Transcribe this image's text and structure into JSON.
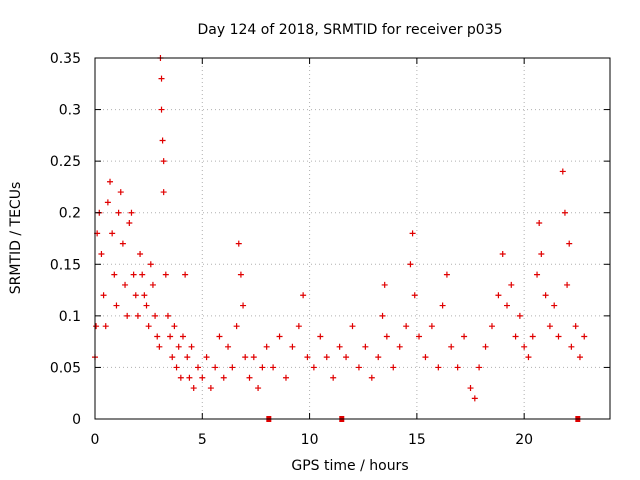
{
  "chart_data": {
    "type": "scatter",
    "title": "Day 124 of 2018, SRMTID for receiver p035",
    "xlabel": "GPS time / hours",
    "ylabel": "SRMTID / TECUs",
    "xlim": [
      0,
      24
    ],
    "ylim": [
      0,
      0.35
    ],
    "x_ticks": [
      0,
      5,
      10,
      15,
      20
    ],
    "x_tick_labels": [
      "0",
      "5",
      "10",
      "15",
      "20"
    ],
    "y_ticks": [
      0,
      0.05,
      0.1,
      0.15,
      0.2,
      0.25,
      0.3,
      0.35
    ],
    "y_tick_labels": [
      "0",
      "0.05",
      "0.1",
      "0.15",
      "0.2",
      "0.25",
      "0.3",
      "0.35"
    ],
    "grid": true,
    "marker": "plus",
    "series_color": "#e00000",
    "gap_markers_x": [
      8.1,
      11.5,
      22.5
    ],
    "series": [
      {
        "name": "SRMTID",
        "points": [
          [
            0.0,
            0.06
          ],
          [
            0.05,
            0.09
          ],
          [
            0.1,
            0.18
          ],
          [
            0.2,
            0.2
          ],
          [
            0.3,
            0.16
          ],
          [
            0.4,
            0.12
          ],
          [
            0.5,
            0.09
          ],
          [
            0.6,
            0.21
          ],
          [
            0.7,
            0.23
          ],
          [
            0.8,
            0.18
          ],
          [
            0.9,
            0.14
          ],
          [
            1.0,
            0.11
          ],
          [
            1.1,
            0.2
          ],
          [
            1.2,
            0.22
          ],
          [
            1.3,
            0.17
          ],
          [
            1.4,
            0.13
          ],
          [
            1.5,
            0.1
          ],
          [
            1.6,
            0.19
          ],
          [
            1.7,
            0.2
          ],
          [
            1.8,
            0.14
          ],
          [
            1.9,
            0.12
          ],
          [
            2.0,
            0.1
          ],
          [
            2.1,
            0.16
          ],
          [
            2.2,
            0.14
          ],
          [
            2.3,
            0.12
          ],
          [
            2.4,
            0.11
          ],
          [
            2.5,
            0.09
          ],
          [
            2.6,
            0.15
          ],
          [
            2.7,
            0.13
          ],
          [
            2.8,
            0.1
          ],
          [
            2.9,
            0.08
          ],
          [
            3.0,
            0.07
          ],
          [
            3.05,
            0.35
          ],
          [
            3.1,
            0.33
          ],
          [
            3.1,
            0.3
          ],
          [
            3.15,
            0.27
          ],
          [
            3.2,
            0.25
          ],
          [
            3.2,
            0.22
          ],
          [
            3.3,
            0.14
          ],
          [
            3.4,
            0.1
          ],
          [
            3.5,
            0.08
          ],
          [
            3.6,
            0.06
          ],
          [
            3.7,
            0.09
          ],
          [
            3.8,
            0.05
          ],
          [
            3.9,
            0.07
          ],
          [
            4.0,
            0.04
          ],
          [
            4.1,
            0.08
          ],
          [
            4.2,
            0.14
          ],
          [
            4.3,
            0.06
          ],
          [
            4.4,
            0.04
          ],
          [
            4.5,
            0.07
          ],
          [
            4.6,
            0.03
          ],
          [
            4.8,
            0.05
          ],
          [
            5.0,
            0.04
          ],
          [
            5.2,
            0.06
          ],
          [
            5.4,
            0.03
          ],
          [
            5.6,
            0.05
          ],
          [
            5.8,
            0.08
          ],
          [
            6.0,
            0.04
          ],
          [
            6.2,
            0.07
          ],
          [
            6.4,
            0.05
          ],
          [
            6.6,
            0.09
          ],
          [
            6.7,
            0.17
          ],
          [
            6.8,
            0.14
          ],
          [
            6.9,
            0.11
          ],
          [
            7.0,
            0.06
          ],
          [
            7.2,
            0.04
          ],
          [
            7.4,
            0.06
          ],
          [
            7.6,
            0.03
          ],
          [
            7.8,
            0.05
          ],
          [
            8.0,
            0.07
          ],
          [
            8.3,
            0.05
          ],
          [
            8.6,
            0.08
          ],
          [
            8.9,
            0.04
          ],
          [
            9.2,
            0.07
          ],
          [
            9.5,
            0.09
          ],
          [
            9.7,
            0.12
          ],
          [
            9.9,
            0.06
          ],
          [
            10.2,
            0.05
          ],
          [
            10.5,
            0.08
          ],
          [
            10.8,
            0.06
          ],
          [
            11.1,
            0.04
          ],
          [
            11.4,
            0.07
          ],
          [
            11.7,
            0.06
          ],
          [
            12.0,
            0.09
          ],
          [
            12.3,
            0.05
          ],
          [
            12.6,
            0.07
          ],
          [
            12.9,
            0.04
          ],
          [
            13.2,
            0.06
          ],
          [
            13.4,
            0.1
          ],
          [
            13.5,
            0.13
          ],
          [
            13.6,
            0.08
          ],
          [
            13.9,
            0.05
          ],
          [
            14.2,
            0.07
          ],
          [
            14.5,
            0.09
          ],
          [
            14.7,
            0.15
          ],
          [
            14.8,
            0.18
          ],
          [
            14.9,
            0.12
          ],
          [
            15.1,
            0.08
          ],
          [
            15.4,
            0.06
          ],
          [
            15.7,
            0.09
          ],
          [
            16.0,
            0.05
          ],
          [
            16.2,
            0.11
          ],
          [
            16.4,
            0.14
          ],
          [
            16.6,
            0.07
          ],
          [
            16.9,
            0.05
          ],
          [
            17.2,
            0.08
          ],
          [
            17.5,
            0.03
          ],
          [
            17.7,
            0.02
          ],
          [
            17.9,
            0.05
          ],
          [
            18.2,
            0.07
          ],
          [
            18.5,
            0.09
          ],
          [
            18.8,
            0.12
          ],
          [
            19.0,
            0.16
          ],
          [
            19.2,
            0.11
          ],
          [
            19.4,
            0.13
          ],
          [
            19.6,
            0.08
          ],
          [
            19.8,
            0.1
          ],
          [
            20.0,
            0.07
          ],
          [
            20.2,
            0.06
          ],
          [
            20.4,
            0.08
          ],
          [
            20.6,
            0.14
          ],
          [
            20.7,
            0.19
          ],
          [
            20.8,
            0.16
          ],
          [
            21.0,
            0.12
          ],
          [
            21.2,
            0.09
          ],
          [
            21.4,
            0.11
          ],
          [
            21.6,
            0.08
          ],
          [
            21.8,
            0.24
          ],
          [
            21.9,
            0.2
          ],
          [
            22.0,
            0.13
          ],
          [
            22.1,
            0.17
          ],
          [
            22.2,
            0.07
          ],
          [
            22.4,
            0.09
          ],
          [
            22.6,
            0.06
          ],
          [
            22.8,
            0.08
          ]
        ]
      }
    ]
  }
}
